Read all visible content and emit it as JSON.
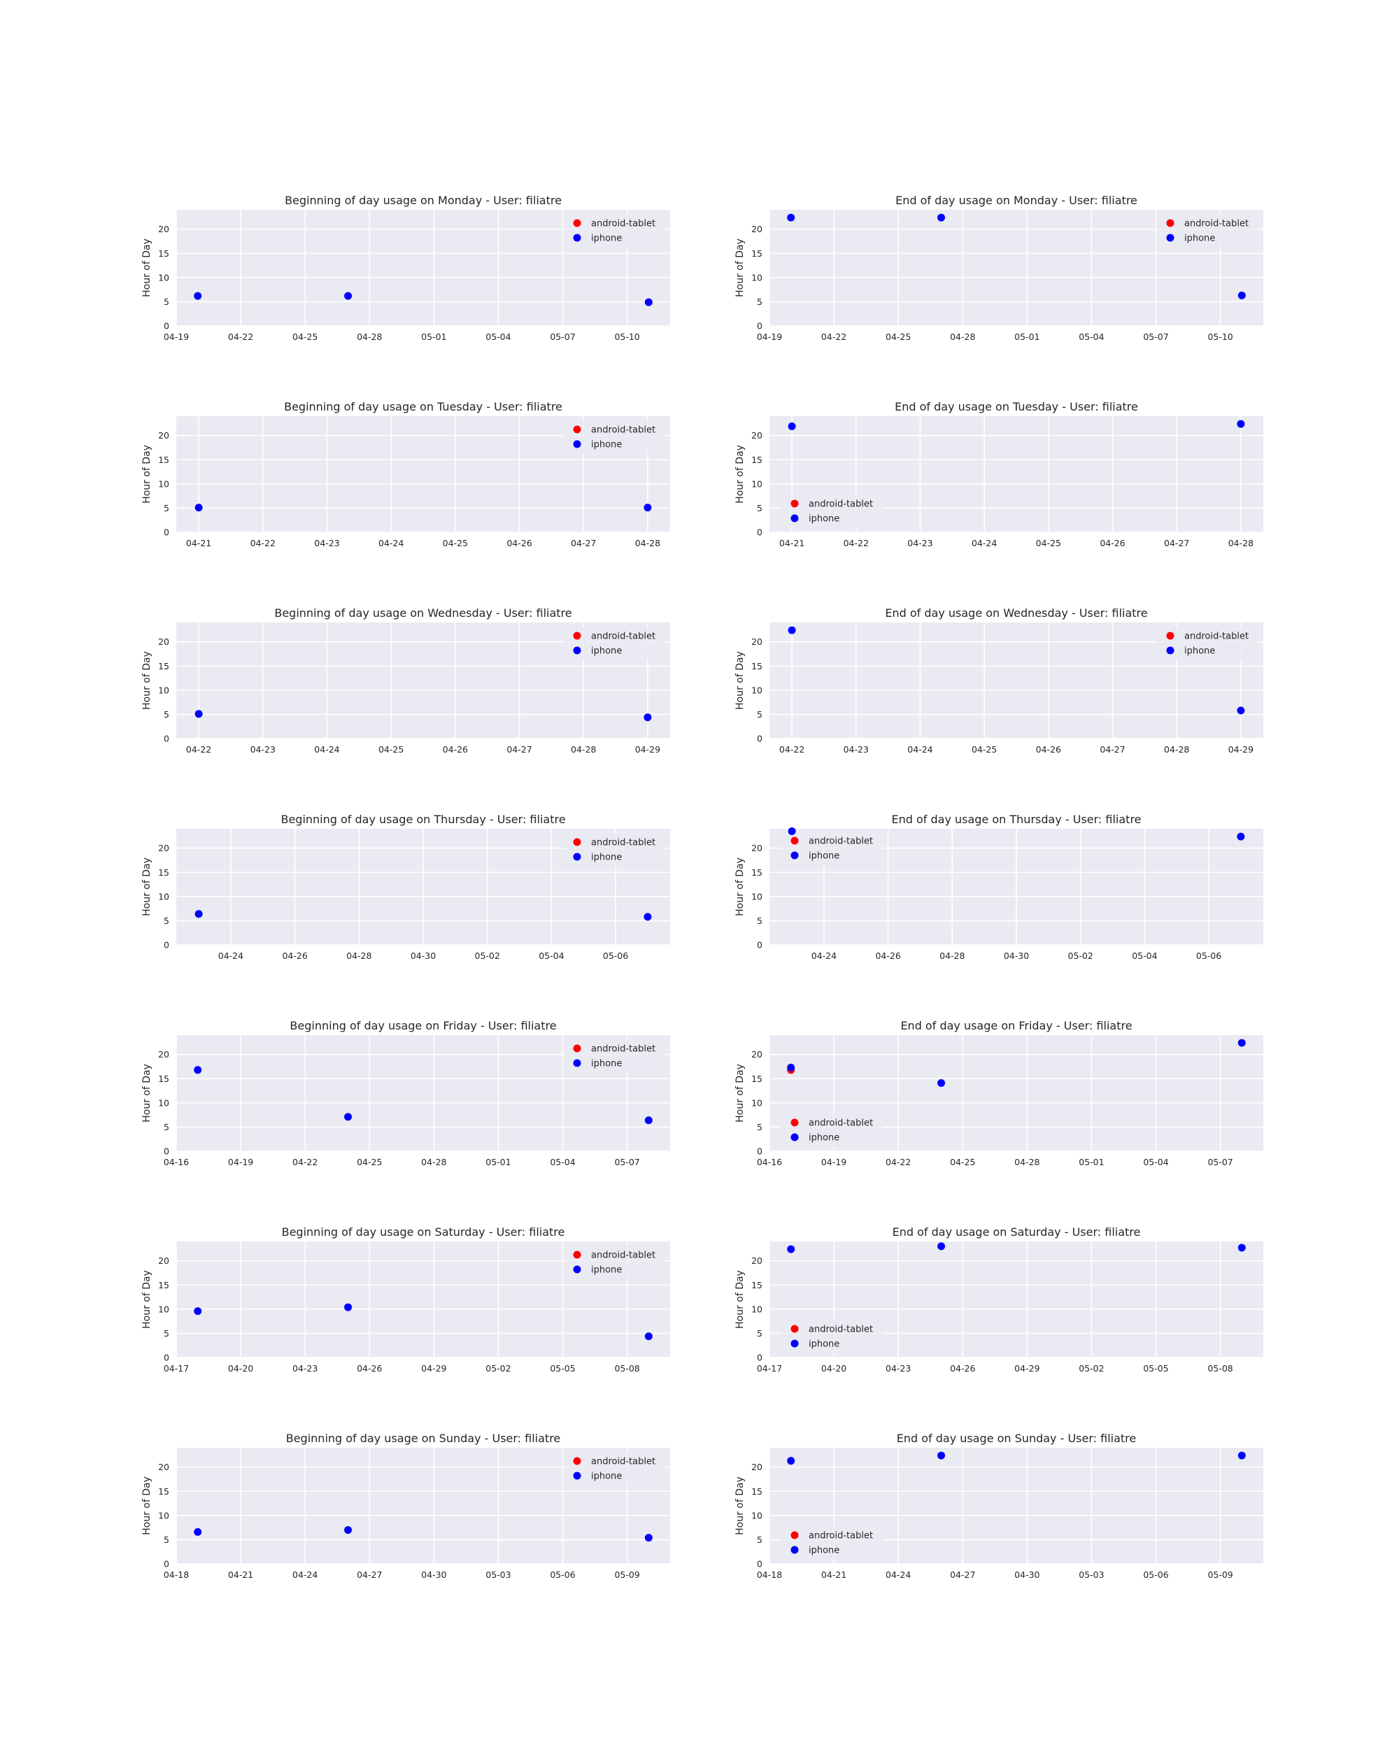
{
  "colors": {
    "android-tablet": "#ff0000",
    "iphone": "#0000ff",
    "axes_bg": "#eaeaf2",
    "grid": "#ffffff"
  },
  "chart_data": [
    {
      "type": "scatter",
      "title": "Beginning of day usage on Monday - User: filiatre",
      "xlabel": "",
      "ylabel": "Hour of Day",
      "xlim": [
        "04-19",
        "05-12"
      ],
      "ylim": [
        0,
        24
      ],
      "grid": true,
      "legend_loc": "top-right",
      "xticks": [
        "04-19",
        "04-22",
        "04-25",
        "04-28",
        "05-01",
        "05-04",
        "05-07",
        "05-10"
      ],
      "yticks": [
        0,
        5,
        10,
        15,
        20
      ],
      "series": [
        {
          "name": "android-tablet",
          "color": "#ff0000",
          "points": []
        },
        {
          "name": "iphone",
          "color": "#0000ff",
          "points": [
            {
              "x": "04-20",
              "y": 6.2
            },
            {
              "x": "04-27",
              "y": 6.2
            },
            {
              "x": "05-11",
              "y": 4.9
            }
          ]
        }
      ]
    },
    {
      "type": "scatter",
      "title": "End of day usage on Monday - User: filiatre",
      "xlabel": "",
      "ylabel": "Hour of Day",
      "xlim": [
        "04-19",
        "05-12"
      ],
      "ylim": [
        0,
        24
      ],
      "grid": true,
      "legend_loc": "top-right",
      "xticks": [
        "04-19",
        "04-22",
        "04-25",
        "04-28",
        "05-01",
        "05-04",
        "05-07",
        "05-10"
      ],
      "yticks": [
        0,
        5,
        10,
        15,
        20
      ],
      "series": [
        {
          "name": "android-tablet",
          "color": "#ff0000",
          "points": []
        },
        {
          "name": "iphone",
          "color": "#0000ff",
          "points": [
            {
              "x": "04-20",
              "y": 22.4
            },
            {
              "x": "04-27",
              "y": 22.4
            },
            {
              "x": "05-11",
              "y": 6.3
            }
          ]
        }
      ]
    },
    {
      "type": "scatter",
      "title": "Beginning of day usage on Tuesday - User: filiatre",
      "xlabel": "",
      "ylabel": "Hour of Day",
      "xlim": [
        "04-20.65",
        "04-28.35"
      ],
      "ylim": [
        0,
        24
      ],
      "grid": true,
      "legend_loc": "top-right",
      "xticks": [
        "04-21",
        "04-22",
        "04-23",
        "04-24",
        "04-25",
        "04-26",
        "04-27",
        "04-28"
      ],
      "yticks": [
        0,
        5,
        10,
        15,
        20
      ],
      "series": [
        {
          "name": "android-tablet",
          "color": "#ff0000",
          "points": []
        },
        {
          "name": "iphone",
          "color": "#0000ff",
          "points": [
            {
              "x": "04-21",
              "y": 5.1
            },
            {
              "x": "04-28",
              "y": 5.1
            }
          ]
        }
      ]
    },
    {
      "type": "scatter",
      "title": "End of day usage on Tuesday - User: filiatre",
      "xlabel": "",
      "ylabel": "Hour of Day",
      "xlim": [
        "04-20.65",
        "04-28.35"
      ],
      "ylim": [
        0,
        24
      ],
      "grid": true,
      "legend_loc": "bottom-left",
      "xticks": [
        "04-21",
        "04-22",
        "04-23",
        "04-24",
        "04-25",
        "04-26",
        "04-27",
        "04-28"
      ],
      "yticks": [
        0,
        5,
        10,
        15,
        20
      ],
      "series": [
        {
          "name": "android-tablet",
          "color": "#ff0000",
          "points": []
        },
        {
          "name": "iphone",
          "color": "#0000ff",
          "points": [
            {
              "x": "04-21",
              "y": 21.9
            },
            {
              "x": "04-28",
              "y": 22.4
            }
          ]
        }
      ]
    },
    {
      "type": "scatter",
      "title": "Beginning of day usage on Wednesday - User: filiatre",
      "xlabel": "",
      "ylabel": "Hour of Day",
      "xlim": [
        "04-21.65",
        "04-29.35"
      ],
      "ylim": [
        0,
        24
      ],
      "grid": true,
      "legend_loc": "top-right",
      "xticks": [
        "04-22",
        "04-23",
        "04-24",
        "04-25",
        "04-26",
        "04-27",
        "04-28",
        "04-29"
      ],
      "yticks": [
        0,
        5,
        10,
        15,
        20
      ],
      "series": [
        {
          "name": "android-tablet",
          "color": "#ff0000",
          "points": []
        },
        {
          "name": "iphone",
          "color": "#0000ff",
          "points": [
            {
              "x": "04-22",
              "y": 5.1
            },
            {
              "x": "04-29",
              "y": 4.4
            }
          ]
        }
      ]
    },
    {
      "type": "scatter",
      "title": "End of day usage on Wednesday - User: filiatre",
      "xlabel": "",
      "ylabel": "Hour of Day",
      "xlim": [
        "04-21.65",
        "04-29.35"
      ],
      "ylim": [
        0,
        24
      ],
      "grid": true,
      "legend_loc": "top-right",
      "xticks": [
        "04-22",
        "04-23",
        "04-24",
        "04-25",
        "04-26",
        "04-27",
        "04-28",
        "04-29"
      ],
      "yticks": [
        0,
        5,
        10,
        15,
        20
      ],
      "series": [
        {
          "name": "android-tablet",
          "color": "#ff0000",
          "points": []
        },
        {
          "name": "iphone",
          "color": "#0000ff",
          "points": [
            {
              "x": "04-22",
              "y": 22.4
            },
            {
              "x": "04-29",
              "y": 5.8
            }
          ]
        }
      ]
    },
    {
      "type": "scatter",
      "title": "Beginning of day usage on Thursday - User: filiatre",
      "xlabel": "",
      "ylabel": "Hour of Day",
      "xlim": [
        "04-22.3",
        "05-07.7"
      ],
      "ylim": [
        0,
        24
      ],
      "grid": true,
      "legend_loc": "top-right",
      "xticks": [
        "04-24",
        "04-26",
        "04-28",
        "04-30",
        "05-02",
        "05-04",
        "05-06"
      ],
      "yticks": [
        0,
        5,
        10,
        15,
        20
      ],
      "series": [
        {
          "name": "android-tablet",
          "color": "#ff0000",
          "points": []
        },
        {
          "name": "iphone",
          "color": "#0000ff",
          "points": [
            {
              "x": "04-23",
              "y": 6.4
            },
            {
              "x": "05-07",
              "y": 5.8
            }
          ]
        }
      ]
    },
    {
      "type": "scatter",
      "title": "End of day usage on Thursday - User: filiatre",
      "xlabel": "",
      "ylabel": "Hour of Day",
      "xlim": [
        "04-22.3",
        "05-07.7"
      ],
      "ylim": [
        0,
        24
      ],
      "grid": true,
      "legend_loc": "top-left",
      "xticks": [
        "04-24",
        "04-26",
        "04-28",
        "04-30",
        "05-02",
        "05-04",
        "05-06"
      ],
      "yticks": [
        0,
        5,
        10,
        15,
        20
      ],
      "series": [
        {
          "name": "android-tablet",
          "color": "#ff0000",
          "points": []
        },
        {
          "name": "iphone",
          "color": "#0000ff",
          "points": [
            {
              "x": "04-23",
              "y": 23.5
            },
            {
              "x": "05-07",
              "y": 22.4
            }
          ]
        }
      ]
    },
    {
      "type": "scatter",
      "title": "Beginning of day usage on Friday - User: filiatre",
      "xlabel": "",
      "ylabel": "Hour of Day",
      "xlim": [
        "04-16",
        "05-09"
      ],
      "ylim": [
        0,
        24
      ],
      "grid": true,
      "legend_loc": "top-right",
      "xticks": [
        "04-16",
        "04-19",
        "04-22",
        "04-25",
        "04-28",
        "05-01",
        "05-04",
        "05-07"
      ],
      "yticks": [
        0,
        5,
        10,
        15,
        20
      ],
      "series": [
        {
          "name": "android-tablet",
          "color": "#ff0000",
          "points": []
        },
        {
          "name": "iphone",
          "color": "#0000ff",
          "points": [
            {
              "x": "04-17",
              "y": 16.8
            },
            {
              "x": "04-24",
              "y": 7.1
            },
            {
              "x": "05-08",
              "y": 6.4
            }
          ]
        }
      ]
    },
    {
      "type": "scatter",
      "title": "End of day usage on Friday - User: filiatre",
      "xlabel": "",
      "ylabel": "Hour of Day",
      "xlim": [
        "04-16",
        "05-09"
      ],
      "ylim": [
        0,
        24
      ],
      "grid": true,
      "legend_loc": "bottom-left",
      "xticks": [
        "04-16",
        "04-19",
        "04-22",
        "04-25",
        "04-28",
        "05-01",
        "05-04",
        "05-07"
      ],
      "yticks": [
        0,
        5,
        10,
        15,
        20
      ],
      "series": [
        {
          "name": "android-tablet",
          "color": "#ff0000",
          "points": [
            {
              "x": "04-17",
              "y": 16.8
            }
          ]
        },
        {
          "name": "iphone",
          "color": "#0000ff",
          "points": [
            {
              "x": "04-17",
              "y": 17.3
            },
            {
              "x": "04-24",
              "y": 14.1
            },
            {
              "x": "05-08",
              "y": 22.4
            }
          ]
        }
      ]
    },
    {
      "type": "scatter",
      "title": "Beginning of day usage on Saturday - User: filiatre",
      "xlabel": "",
      "ylabel": "Hour of Day",
      "xlim": [
        "04-17",
        "05-10"
      ],
      "ylim": [
        0,
        24
      ],
      "grid": true,
      "legend_loc": "top-right",
      "xticks": [
        "04-17",
        "04-20",
        "04-23",
        "04-26",
        "04-29",
        "05-02",
        "05-05",
        "05-08"
      ],
      "yticks": [
        0,
        5,
        10,
        15,
        20
      ],
      "series": [
        {
          "name": "android-tablet",
          "color": "#ff0000",
          "points": []
        },
        {
          "name": "iphone",
          "color": "#0000ff",
          "points": [
            {
              "x": "04-18",
              "y": 9.6
            },
            {
              "x": "04-25",
              "y": 10.4
            },
            {
              "x": "05-09",
              "y": 4.4
            }
          ]
        }
      ]
    },
    {
      "type": "scatter",
      "title": "End of day usage on Saturday - User: filiatre",
      "xlabel": "",
      "ylabel": "Hour of Day",
      "xlim": [
        "04-17",
        "05-10"
      ],
      "ylim": [
        0,
        24
      ],
      "grid": true,
      "legend_loc": "bottom-left",
      "xticks": [
        "04-17",
        "04-20",
        "04-23",
        "04-26",
        "04-29",
        "05-02",
        "05-05",
        "05-08"
      ],
      "yticks": [
        0,
        5,
        10,
        15,
        20
      ],
      "series": [
        {
          "name": "android-tablet",
          "color": "#ff0000",
          "points": []
        },
        {
          "name": "iphone",
          "color": "#0000ff",
          "points": [
            {
              "x": "04-18",
              "y": 22.4
            },
            {
              "x": "04-25",
              "y": 23.0
            },
            {
              "x": "05-09",
              "y": 22.7
            }
          ]
        }
      ]
    },
    {
      "type": "scatter",
      "title": "Beginning of day usage on Sunday - User: filiatre",
      "xlabel": "",
      "ylabel": "Hour of Day",
      "xlim": [
        "04-18",
        "05-11"
      ],
      "ylim": [
        0,
        24
      ],
      "grid": true,
      "legend_loc": "top-right",
      "xticks": [
        "04-18",
        "04-21",
        "04-24",
        "04-27",
        "04-30",
        "05-03",
        "05-06",
        "05-09"
      ],
      "yticks": [
        0,
        5,
        10,
        15,
        20
      ],
      "series": [
        {
          "name": "android-tablet",
          "color": "#ff0000",
          "points": []
        },
        {
          "name": "iphone",
          "color": "#0000ff",
          "points": [
            {
              "x": "04-19",
              "y": 6.6
            },
            {
              "x": "04-26",
              "y": 7.0
            },
            {
              "x": "05-10",
              "y": 5.4
            }
          ]
        }
      ]
    },
    {
      "type": "scatter",
      "title": "End of day usage on Sunday - User: filiatre",
      "xlabel": "",
      "ylabel": "Hour of Day",
      "xlim": [
        "04-18",
        "05-11"
      ],
      "ylim": [
        0,
        24
      ],
      "grid": true,
      "legend_loc": "bottom-left",
      "xticks": [
        "04-18",
        "04-21",
        "04-24",
        "04-27",
        "04-30",
        "05-03",
        "05-06",
        "05-09"
      ],
      "yticks": [
        0,
        5,
        10,
        15,
        20
      ],
      "series": [
        {
          "name": "android-tablet",
          "color": "#ff0000",
          "points": []
        },
        {
          "name": "iphone",
          "color": "#0000ff",
          "points": [
            {
              "x": "04-19",
              "y": 21.3
            },
            {
              "x": "04-26",
              "y": 22.4
            },
            {
              "x": "05-10",
              "y": 22.4
            }
          ]
        }
      ]
    }
  ]
}
